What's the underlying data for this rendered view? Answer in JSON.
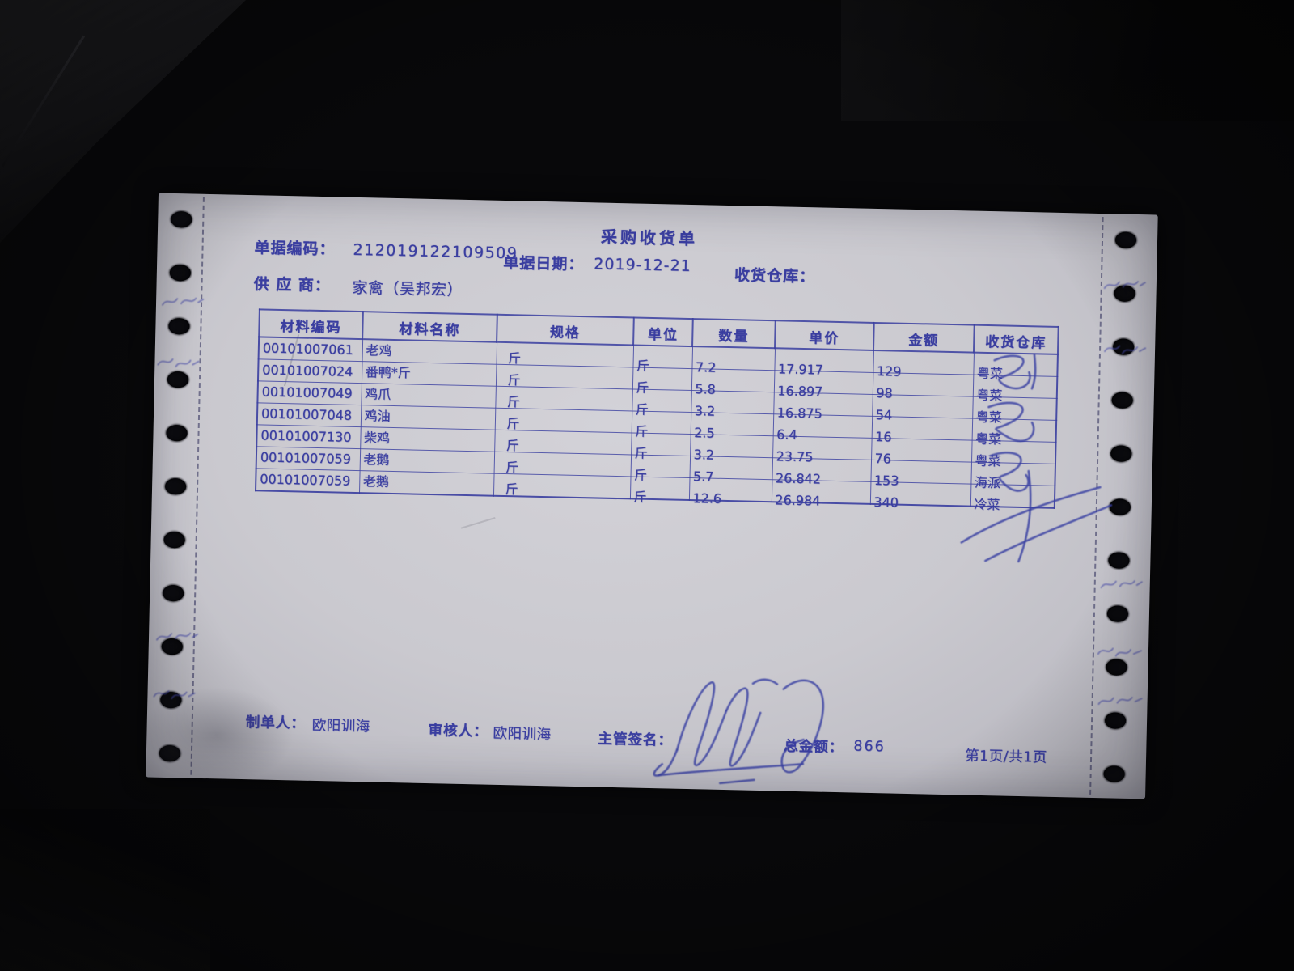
{
  "document": {
    "title": "采购收货单",
    "doc_no_label": "单据编码：",
    "doc_no": "212019122109509",
    "date_label": "单据日期：",
    "date": "2019-12-21",
    "warehouse_label": "收货仓库：",
    "supplier_label": "供 应 商：",
    "supplier": "家禽（吴邦宏）"
  },
  "table": {
    "headers": [
      "材料编码",
      "材料名称",
      "规格",
      "单位",
      "数量",
      "单价",
      "金额",
      "收货仓库"
    ],
    "rows": [
      [
        "00101007061",
        "老鸡",
        "斤",
        "斤",
        "7.2",
        "17.917",
        "129",
        "粤菜"
      ],
      [
        "00101007024",
        "番鸭*斤",
        "斤",
        "斤",
        "5.8",
        "16.897",
        "98",
        "粤菜"
      ],
      [
        "00101007049",
        "鸡爪",
        "斤",
        "斤",
        "3.2",
        "16.875",
        "54",
        "粤菜"
      ],
      [
        "00101007048",
        "鸡油",
        "斤",
        "斤",
        "2.5",
        "6.4",
        "16",
        "粤菜"
      ],
      [
        "00101007130",
        "柴鸡",
        "斤",
        "斤",
        "3.2",
        "23.75",
        "76",
        "粤菜"
      ],
      [
        "00101007059",
        "老鹅",
        "斤",
        "斤",
        "5.7",
        "26.842",
        "153",
        "海派"
      ],
      [
        "00101007059",
        "老鹅",
        "斤",
        "斤",
        "12.6",
        "26.984",
        "340",
        "冷菜"
      ]
    ]
  },
  "footer": {
    "maker_label": "制单人：",
    "maker": "欧阳训海",
    "auditor_label": "审核人：",
    "auditor": "欧阳训海",
    "sign_label": "主管签名：",
    "total_label": "总金额：",
    "total": "866",
    "page_info": "第1页/共1页"
  },
  "colors": {
    "ink": "#3a3ea0",
    "paper": "#cccbd1",
    "background": "#08080a"
  }
}
